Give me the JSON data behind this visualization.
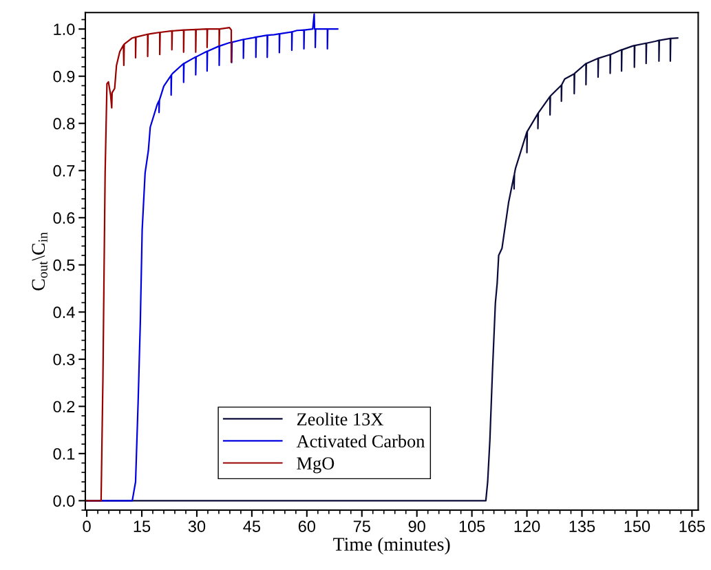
{
  "chart_data": {
    "type": "line",
    "xlabel": "Time (minutes)",
    "ylabel": "C$_{out}$\\C$_{in}$",
    "xlim": [
      -0.4,
      166.7
    ],
    "xticks": [
      0,
      15,
      30,
      45,
      60,
      75,
      90,
      105,
      120,
      135,
      150,
      165
    ],
    "ylim": [
      -0.02,
      1.035
    ],
    "yticks": [
      {
        "value": 0,
        "label": "0.0"
      },
      0.1,
      0.2,
      0.3,
      0.4,
      0.5,
      0.6,
      0.7,
      0.8,
      0.9,
      {
        "value": 1,
        "label": "1.0"
      }
    ],
    "grid": false,
    "legend": "bottom",
    "marker": "none",
    "line_style": "solid",
    "series": [
      {
        "name": "Zeolite 13X",
        "color": "#0b0b3b",
        "x": [
          0,
          108.8,
          109.3,
          109.9,
          110.6,
          111.4,
          111.9,
          112.3,
          113.2,
          115.0,
          116.5,
          116.5,
          116.6,
          116.9,
          120.0,
          120.0,
          120.1,
          123.0,
          123.0,
          123.1,
          126.1,
          126.3,
          126.3,
          126.4,
          129.4,
          129.4,
          129.5,
          130.3,
          132.9,
          132.9,
          133.0,
          136.1,
          136.1,
          136.2,
          139.4,
          139.4,
          139.5,
          142.7,
          142.7,
          142.8,
          145.8,
          145.8,
          145.9,
          148.8,
          149.3,
          149.3,
          149.4,
          152.5,
          152.5,
          152.6,
          155.0,
          156.0,
          156.0,
          156.1,
          159.1,
          159.1,
          159.2,
          161.1
        ],
        "values": [
          0,
          0,
          0.04,
          0.128,
          0.273,
          0.419,
          0.462,
          0.52,
          0.535,
          0.632,
          0.69,
          0.661,
          0.693,
          0.705,
          0.782,
          0.738,
          0.783,
          0.821,
          0.789,
          0.822,
          0.855,
          0.857,
          0.818,
          0.858,
          0.881,
          0.847,
          0.882,
          0.894,
          0.905,
          0.863,
          0.906,
          0.927,
          0.882,
          0.927,
          0.938,
          0.898,
          0.938,
          0.946,
          0.906,
          0.946,
          0.956,
          0.911,
          0.956,
          0.964,
          0.965,
          0.919,
          0.965,
          0.97,
          0.927,
          0.97,
          0.974,
          0.976,
          0.932,
          0.976,
          0.98,
          0.932,
          0.98,
          0.981
        ]
      },
      {
        "name": "Activated Carbon",
        "color": "#0000e0",
        "x": [
          0,
          12.4,
          13.3,
          14.0,
          14.6,
          15.1,
          15.9,
          16.8,
          17.3,
          19.2,
          19.7,
          19.7,
          19.8,
          21.0,
          23.0,
          23.0,
          23.1,
          23.4,
          26.4,
          26.4,
          26.5,
          29.7,
          29.7,
          29.8,
          32.6,
          32.8,
          32.8,
          32.9,
          36.1,
          36.1,
          36.2,
          38.9,
          39.5,
          39.5,
          39.6,
          42.7,
          42.7,
          42.8,
          45.0,
          46.1,
          46.1,
          46.2,
          49.2,
          49.2,
          49.3,
          51.1,
          52.5,
          52.5,
          52.6,
          55.9,
          55.9,
          56.0,
          57.3,
          59.2,
          59.2,
          59.3,
          61.6,
          62.0,
          62.1,
          62.3,
          62.3,
          62.4,
          65.6,
          65.6,
          65.7,
          68.4
        ],
        "values": [
          0,
          0,
          0.04,
          0.21,
          0.38,
          0.574,
          0.695,
          0.743,
          0.792,
          0.84,
          0.848,
          0.823,
          0.849,
          0.879,
          0.902,
          0.86,
          0.903,
          0.906,
          0.927,
          0.887,
          0.927,
          0.941,
          0.903,
          0.941,
          0.952,
          0.953,
          0.911,
          0.953,
          0.964,
          0.923,
          0.964,
          0.971,
          0.972,
          0.929,
          0.972,
          0.978,
          0.938,
          0.978,
          0.981,
          0.983,
          0.94,
          0.983,
          0.987,
          0.94,
          0.987,
          0.988,
          0.99,
          0.95,
          0.99,
          0.994,
          0.955,
          0.994,
          0.997,
          0.998,
          0.958,
          0.998,
          1.0,
          1.032,
          1.0,
          1.0,
          0.961,
          1.0,
          1.0,
          0.958,
          1.0,
          1.0
        ]
      },
      {
        "name": "MgO",
        "color": "#990000",
        "x": [
          0,
          3.9,
          4.4,
          5.0,
          5.5,
          5.9,
          6.5,
          6.8,
          6.9,
          7.6,
          8.1,
          9.0,
          10.0,
          10.1,
          10.2,
          12.4,
          13.3,
          13.3,
          13.4,
          16.6,
          16.6,
          16.7,
          17.3,
          19.9,
          19.9,
          20.0,
          23.2,
          23.2,
          23.3,
          23.4,
          26.4,
          26.4,
          26.5,
          29.7,
          29.7,
          29.8,
          32.6,
          32.8,
          32.8,
          32.9,
          36.1,
          36.1,
          36.2,
          38.9,
          39.4,
          39.4
        ],
        "values": [
          0,
          0,
          0.259,
          0.695,
          0.884,
          0.888,
          0.86,
          0.833,
          0.865,
          0.874,
          0.923,
          0.952,
          0.966,
          0.923,
          0.968,
          0.981,
          0.983,
          0.939,
          0.983,
          0.989,
          0.942,
          0.989,
          0.99,
          0.993,
          0.946,
          0.993,
          0.996,
          0.956,
          0.996,
          0.996,
          0.998,
          0.951,
          0.998,
          0.999,
          0.951,
          0.999,
          1.0,
          1.0,
          0.961,
          1.0,
          1.0,
          0.966,
          1.0,
          1.003,
          0.998,
          0.93
        ]
      }
    ]
  }
}
